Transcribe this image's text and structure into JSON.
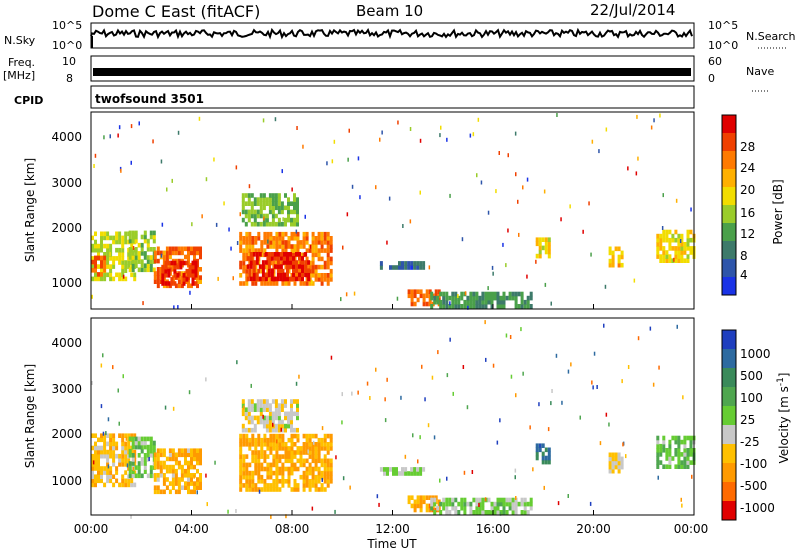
{
  "header": {
    "radar": "Dome C East (fitACF)",
    "beam": "Beam 10",
    "date": "22/Jul/2014"
  },
  "aux_panels": {
    "nsky_label": "N.Sky",
    "nsearch_label": "N.Search",
    "nsky_ticks": [
      "10^5",
      "10^0"
    ],
    "nsearch_ticks": [
      "10^5",
      "10^0"
    ],
    "freq_label": "Freq.",
    "freq_unit": "[MHz]",
    "freq_ticks": [
      "10",
      "8"
    ],
    "nave_label": "Nave",
    "nave_ticks": [
      "60",
      "0"
    ],
    "cpid_label": "CPID",
    "cpid_value": "twofsound 3501"
  },
  "axes": {
    "x_ticks": [
      "00:00",
      "04:00",
      "08:00",
      "12:00",
      "16:00",
      "20:00",
      "00:00"
    ],
    "x_label": "Time UT",
    "y_ticks": [
      "1000",
      "2000",
      "3000",
      "4000"
    ],
    "y_label": "Slant Range [km]"
  },
  "power_scale": {
    "label": "Power [dB]",
    "ticks": [
      "4",
      "8",
      "12",
      "16",
      "20",
      "24",
      "28"
    ],
    "colors": [
      "#1a33e6",
      "#2e55aa",
      "#3d7a6a",
      "#4aa04a",
      "#9acc2a",
      "#f2dd00",
      "#ffb000",
      "#ff7a00",
      "#f04000",
      "#e00000"
    ]
  },
  "velocity_scale": {
    "label": "Velocity [m s",
    "label_exponent": "-1",
    "label_close": "]",
    "ticks": [
      "1000",
      "500",
      "100",
      "25",
      "-25",
      "-100",
      "-500",
      "-1000"
    ],
    "colors": [
      "#1f3fbf",
      "#2d6aa0",
      "#3a8a5a",
      "#4fa64f",
      "#66cc33",
      "#c8c8c8",
      "#ffc000",
      "#ff9a00",
      "#ff6a00",
      "#e00000"
    ]
  },
  "chart_data": [
    {
      "type": "heatmap",
      "title": "Power",
      "xlabel": "Time UT",
      "ylabel": "Slant Range [km]",
      "xlim": [
        0,
        24
      ],
      "ylim": [
        180,
        4500
      ],
      "colorbar": {
        "label": "Power [dB]",
        "range": [
          0,
          32
        ]
      },
      "regions": [
        {
          "t": [
            0.0,
            1.7
          ],
          "r": [
            800,
            1800
          ],
          "value": 16
        },
        {
          "t": [
            0.0,
            0.6
          ],
          "r": [
            900,
            1300
          ],
          "value": 27
        },
        {
          "t": [
            1.5,
            2.5
          ],
          "r": [
            1000,
            1900
          ],
          "value": 14
        },
        {
          "t": [
            2.5,
            4.4
          ],
          "r": [
            650,
            1500
          ],
          "value": 25
        },
        {
          "t": [
            2.8,
            4.2
          ],
          "r": [
            700,
            1200
          ],
          "value": 29
        },
        {
          "t": [
            5.9,
            9.5
          ],
          "r": [
            700,
            1800
          ],
          "value": 24
        },
        {
          "t": [
            6.2,
            8.6
          ],
          "r": [
            800,
            1400
          ],
          "value": 29
        },
        {
          "t": [
            6.0,
            8.2
          ],
          "r": [
            2000,
            2700
          ],
          "value": 13
        },
        {
          "t": [
            11.5,
            13.2
          ],
          "r": [
            1050,
            1150
          ],
          "value": 6
        },
        {
          "t": [
            12.6,
            13.8
          ],
          "r": [
            250,
            600
          ],
          "value": 26
        },
        {
          "t": [
            13.5,
            17.5
          ],
          "r": [
            200,
            500
          ],
          "value": 10
        },
        {
          "t": [
            17.7,
            18.2
          ],
          "r": [
            1300,
            1700
          ],
          "value": 18
        },
        {
          "t": [
            20.6,
            21.2
          ],
          "r": [
            1100,
            1500
          ],
          "value": 20
        },
        {
          "t": [
            22.5,
            24.0
          ],
          "r": [
            1200,
            1900
          ],
          "value": 18
        }
      ]
    },
    {
      "type": "heatmap",
      "title": "Velocity",
      "xlabel": "Time UT",
      "ylabel": "Slant Range [km]",
      "xlim": [
        0,
        24
      ],
      "ylim": [
        180,
        4500
      ],
      "colorbar": {
        "label": "Velocity [m s^-1]",
        "range": [
          -1000,
          1000
        ]
      },
      "regions": [
        {
          "t": [
            0.0,
            1.7
          ],
          "r": [
            800,
            1900
          ],
          "value": -300
        },
        {
          "t": [
            1.5,
            2.5
          ],
          "r": [
            1000,
            1900
          ],
          "value": 80
        },
        {
          "t": [
            2.5,
            4.4
          ],
          "r": [
            650,
            1600
          ],
          "value": -350
        },
        {
          "t": [
            5.9,
            9.5
          ],
          "r": [
            700,
            1900
          ],
          "value": -400
        },
        {
          "t": [
            6.0,
            8.2
          ],
          "r": [
            2000,
            2700
          ],
          "value": -120
        },
        {
          "t": [
            11.5,
            13.2
          ],
          "r": [
            1050,
            1150
          ],
          "value": 0
        },
        {
          "t": [
            12.6,
            13.8
          ],
          "r": [
            250,
            600
          ],
          "value": -450
        },
        {
          "t": [
            13.5,
            17.5
          ],
          "r": [
            200,
            500
          ],
          "value": 60
        },
        {
          "t": [
            17.7,
            18.2
          ],
          "r": [
            1300,
            1700
          ],
          "value": 600
        },
        {
          "t": [
            20.6,
            21.2
          ],
          "r": [
            1100,
            1500
          ],
          "value": -200
        },
        {
          "t": [
            22.5,
            24.0
          ],
          "r": [
            1200,
            1900
          ],
          "value": 150
        }
      ]
    }
  ]
}
